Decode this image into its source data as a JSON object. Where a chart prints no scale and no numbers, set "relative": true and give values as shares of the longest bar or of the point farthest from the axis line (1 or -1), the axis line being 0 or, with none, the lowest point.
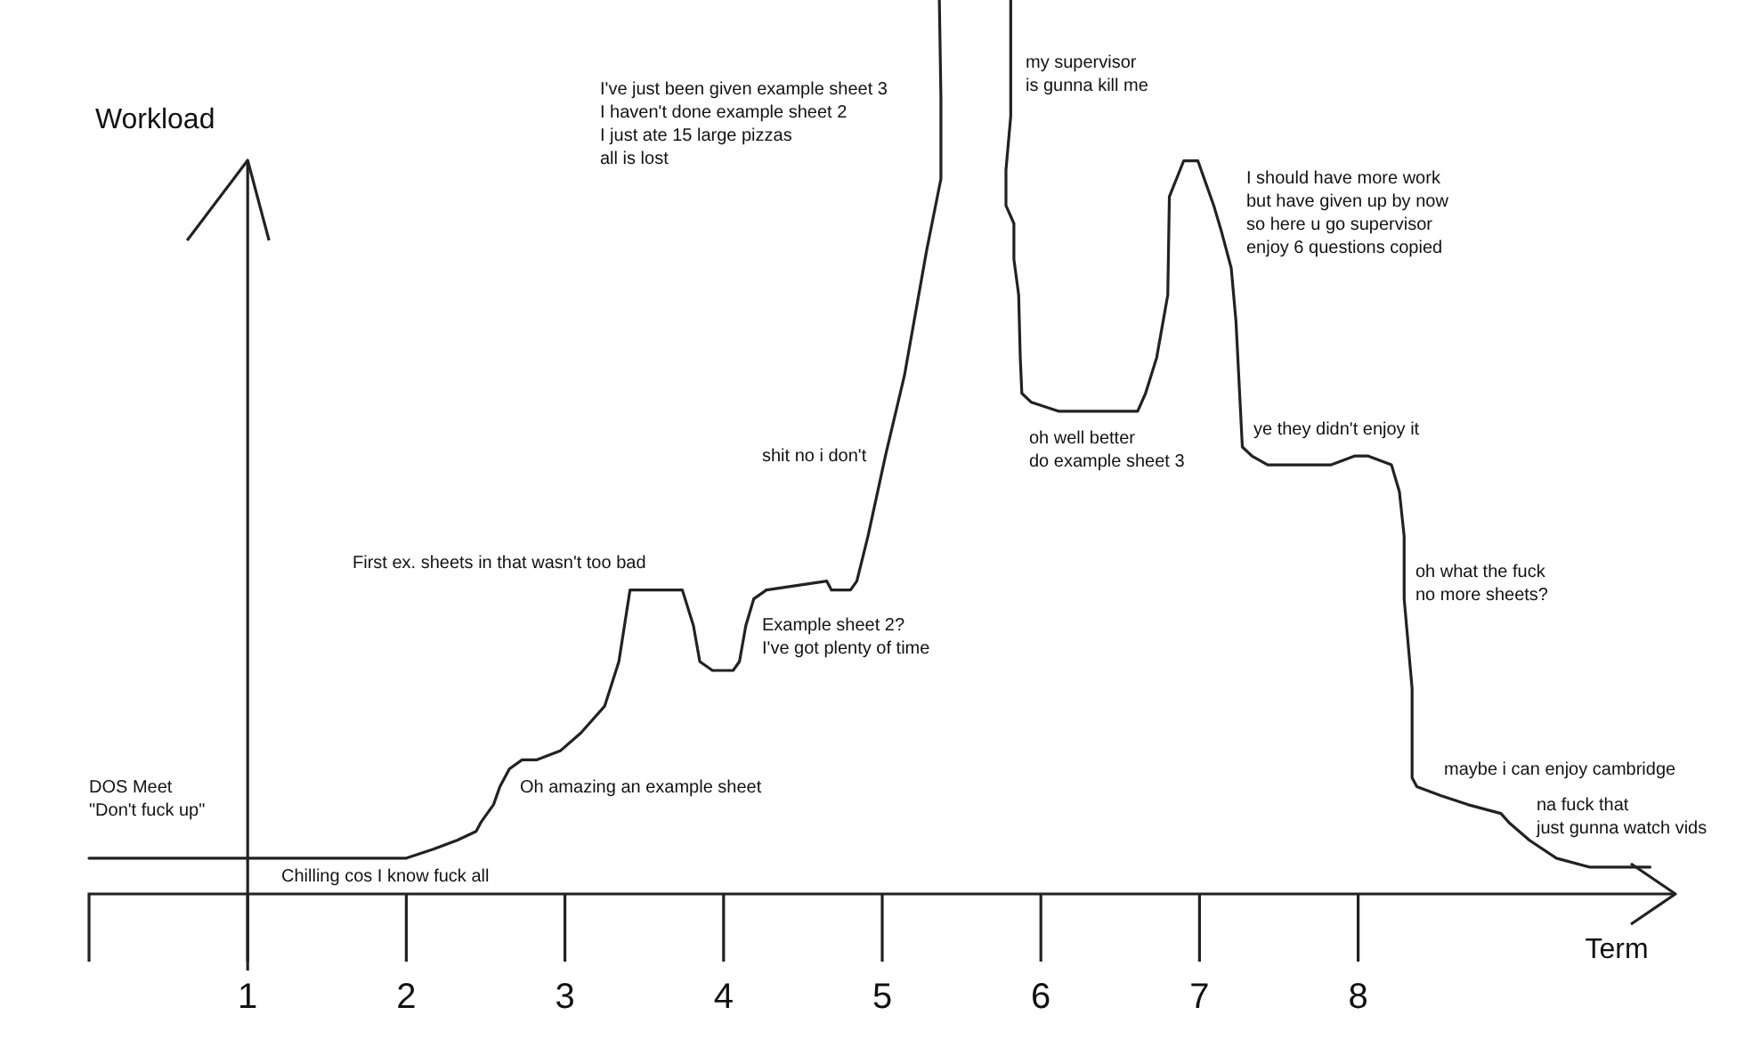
{
  "chart_data": {
    "type": "line",
    "relative": true,
    "xlabel": "Term",
    "ylabel": "Workload",
    "xlim": [
      0,
      10
    ],
    "xticks": [
      1,
      2,
      3,
      4,
      5,
      6,
      7,
      8
    ],
    "series": [
      {
        "color": "#222222",
        "x": [
          0,
          1,
          1.2,
          2,
          2.17,
          2.32,
          2.44,
          2.47,
          2.55,
          2.59,
          2.65,
          2.73,
          2.82,
          2.97,
          3.1,
          3.25,
          3.34,
          3.41,
          3.74,
          3.81,
          3.85,
          3.93,
          4.06,
          4.1,
          4.14,
          4.19,
          4.27,
          4.65,
          4.68,
          4.8,
          4.84,
          4.91,
          5.02,
          5.14,
          5.28,
          5.37,
          5.37,
          5.36,
          5.6,
          5.81,
          5.81,
          5.78,
          5.78,
          5.83,
          5.83,
          5.86,
          5.87,
          5.88,
          5.94,
          6.11,
          6.47,
          6.61,
          6.66,
          6.73,
          6.8,
          6.81,
          6.9,
          6.99,
          7.09,
          7.14,
          7.2,
          7.23,
          7.25,
          7.27,
          7.33,
          7.43,
          7.65,
          7.83,
          7.98,
          8.06,
          8.21,
          8.26,
          8.29,
          8.29,
          8.34,
          8.34,
          8.37,
          8.52,
          8.69,
          8.9,
          8.95,
          9.08,
          9.25,
          9.46,
          9.84
        ],
        "values": [
          0.04,
          0.04,
          0.04,
          0.04,
          0.05,
          0.06,
          0.07,
          0.08,
          0.1,
          0.12,
          0.14,
          0.15,
          0.15,
          0.16,
          0.18,
          0.21,
          0.26,
          0.34,
          0.34,
          0.3,
          0.26,
          0.25,
          0.25,
          0.26,
          0.3,
          0.33,
          0.34,
          0.35,
          0.34,
          0.34,
          0.35,
          0.4,
          0.49,
          0.58,
          0.72,
          0.8,
          0.89,
          1,
          null,
          1,
          0.87,
          0.81,
          0.77,
          0.75,
          0.71,
          0.67,
          0.6,
          0.56,
          0.55,
          0.54,
          0.54,
          0.54,
          0.56,
          0.6,
          0.67,
          0.78,
          0.82,
          0.82,
          0.77,
          0.74,
          0.7,
          0.64,
          0.57,
          0.5,
          0.49,
          0.48,
          0.48,
          0.48,
          0.49,
          0.49,
          0.48,
          0.45,
          0.4,
          0.33,
          0.23,
          0.13,
          0.12,
          0.11,
          0.1,
          0.09,
          0.08,
          0.06,
          0.04,
          0.03,
          0.03
        ]
      }
    ],
    "annotations": [
      "DOS Meet\n\"Don't fuck up\"",
      "Chilling cos I know fuck all",
      "Oh amazing an example sheet",
      "First ex. sheets in that wasn't too bad",
      "Example sheet 2?\nI've got plenty of time",
      "shit no i don't",
      "I've just been given example sheet 3\nI haven't done example sheet 2\nI just ate 15 large pizzas\nall is lost",
      "my supervisor\nis gunna kill me",
      "I should have more work\nbut have given up by now\nso here u go supervisor\nenjoy 6 questions copied",
      "oh well better\ndo example sheet 3",
      "ye they didn't enjoy it",
      "oh what the fuck\nno more sheets?",
      "maybe i can enjoy cambridge",
      "na fuck that\njust gunna watch vids"
    ]
  }
}
